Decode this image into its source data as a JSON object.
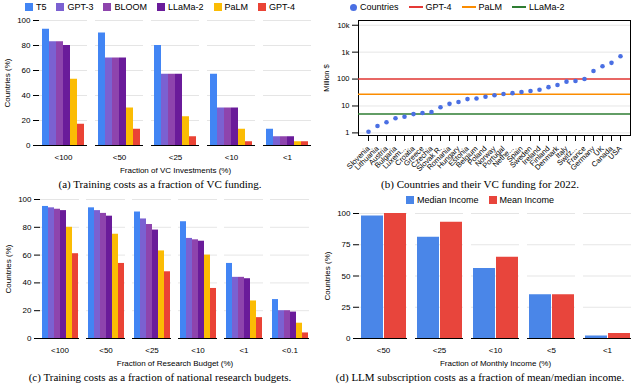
{
  "chart_data": [
    {
      "type": "bar",
      "title": "(a) Training costs as a fraction of VC funding.",
      "x_label": "Fraction of VC Investments (%)",
      "y_label": "Countries (%)",
      "categories": [
        "<100",
        "<50",
        "<25",
        "<10",
        "<1"
      ],
      "series": [
        {
          "name": "T5",
          "color": "#4285f4",
          "values": [
            93,
            90,
            80,
            57,
            13
          ]
        },
        {
          "name": "GPT-3",
          "color": "#7b61d1",
          "values": [
            83,
            70,
            57,
            30,
            7
          ]
        },
        {
          "name": "BLOOM",
          "color": "#8e44ad",
          "values": [
            83,
            70,
            57,
            30,
            7
          ]
        },
        {
          "name": "LLaMa-2",
          "color": "#6a1b9a",
          "values": [
            80,
            70,
            57,
            30,
            7
          ]
        },
        {
          "name": "PaLM",
          "color": "#fbbc04",
          "values": [
            53,
            30,
            23,
            13,
            3
          ]
        },
        {
          "name": "GPT-4",
          "color": "#ea4335",
          "values": [
            17,
            13,
            7,
            3,
            3
          ]
        }
      ],
      "ylim": [
        0,
        100
      ],
      "yticks": [
        0,
        20,
        40,
        60,
        80,
        100
      ],
      "grid": true,
      "legend": "top"
    },
    {
      "type": "scatter",
      "title": "(b) Countries and their VC funding for 2022.",
      "y_label": "Million $",
      "categories": [
        "Slovenia",
        "Lithuania",
        "Austria",
        "Bulgaria",
        "Luxem...",
        "Croatia",
        "Greece",
        "Czechia",
        "Slovak R.",
        "Romania",
        "Hungary",
        "Estonia",
        "Belgium",
        "Poland",
        "Norway",
        "Portugal",
        "Nethe...",
        "Spain",
        "Sweden",
        "Ireland",
        "Finland",
        "Denmark",
        "Italy",
        "Switz...",
        "France",
        "Germany",
        "UK",
        "Canada",
        "USA"
      ],
      "series": [
        {
          "name": "Countries",
          "color": "#4a6fe3",
          "marker": "circle",
          "values": [
            1.1,
            1.8,
            2.5,
            3.5,
            4,
            5,
            5.5,
            6,
            9,
            12,
            14,
            18,
            19,
            22,
            25,
            28,
            30,
            33,
            36,
            40,
            50,
            60,
            80,
            85,
            100,
            200,
            300,
            400,
            700
          ]
        }
      ],
      "reference_lines": [
        {
          "name": "GPT-4",
          "color": "#e53935",
          "value": 100
        },
        {
          "name": "PaLM",
          "color": "#fb8c00",
          "value": 27
        },
        {
          "name": "LLaMa-2",
          "color": "#2e7d32",
          "value": 5
        }
      ],
      "log": "y",
      "ylim": [
        0.8,
        15000
      ],
      "yticks": [
        1,
        10,
        100,
        {
          "value": 1000,
          "label": "1k"
        },
        {
          "value": 10000,
          "label": "10k"
        }
      ],
      "grid": true,
      "legend": "top left"
    },
    {
      "type": "bar",
      "title": "(c) Training costs as a fraction of national research budgets.",
      "x_label": "Fraction of Research Budget (%)",
      "y_label": "Countries (%)",
      "categories": [
        "<100",
        "<50",
        "<25",
        "<10",
        "<1",
        "<0.1"
      ],
      "series": [
        {
          "color": "#4285f4",
          "values": [
            95,
            94,
            91,
            84,
            54,
            28
          ]
        },
        {
          "color": "#7b61d1",
          "values": [
            94,
            92,
            86,
            72,
            44,
            20
          ]
        },
        {
          "color": "#8e44ad",
          "values": [
            93,
            90,
            82,
            71,
            44,
            20
          ]
        },
        {
          "color": "#6a1b9a",
          "values": [
            92,
            88,
            78,
            70,
            43,
            19
          ]
        },
        {
          "color": "#fbbc04",
          "values": [
            80,
            75,
            63,
            60,
            27,
            11
          ]
        },
        {
          "color": "#ea4335",
          "values": [
            61,
            54,
            48,
            36,
            15,
            4
          ]
        }
      ],
      "ylim": [
        0,
        100
      ],
      "yticks": [
        0,
        20,
        40,
        60,
        80,
        100
      ],
      "grid": true
    },
    {
      "type": "bar",
      "title": "(d) LLM subscription costs as a fraction of mean/median income.",
      "x_label": "Fraction of Monthly Income (%)",
      "y_label": "Countries (%)",
      "categories": [
        "<50",
        "<25",
        "<10",
        "<5",
        "<1"
      ],
      "series": [
        {
          "name": "Median Income",
          "color": "#4a86e8",
          "values": [
            98,
            81,
            56,
            35,
            2
          ]
        },
        {
          "name": "Mean Income",
          "color": "#e8453c",
          "values": [
            100,
            93,
            65,
            35,
            4
          ]
        }
      ],
      "ylim": [
        0,
        100
      ],
      "yticks": [
        0,
        25,
        50,
        75,
        100
      ],
      "grid": true,
      "legend": "top"
    }
  ]
}
